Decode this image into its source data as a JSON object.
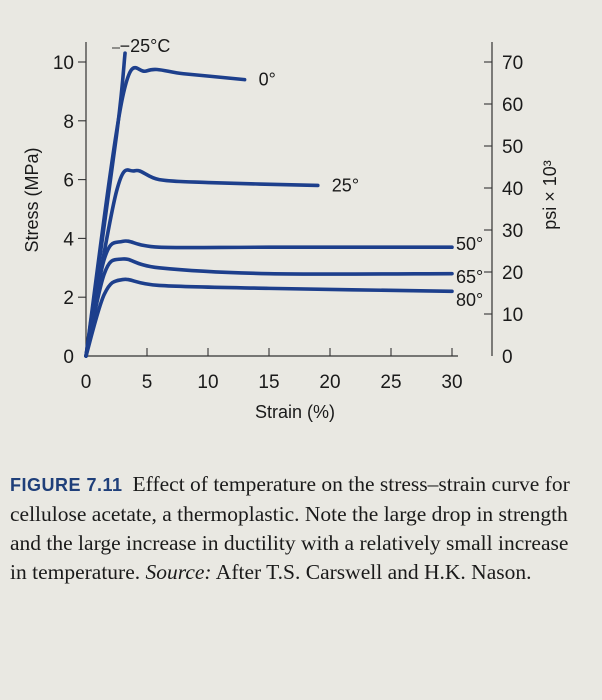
{
  "chart_data": {
    "type": "line",
    "title": "",
    "xlabel": "Strain (%)",
    "ylabel": "Stress (MPa)",
    "y2label": "psi × 10³",
    "xlim": [
      0,
      30
    ],
    "ylim": [
      0,
      10
    ],
    "x_ticks": [
      "0",
      "5",
      "10",
      "15",
      "20",
      "25",
      "30"
    ],
    "y_ticks": [
      "0",
      "2",
      "4",
      "6",
      "8",
      "10"
    ],
    "y2_ticks": [
      "0",
      "10",
      "20",
      "30",
      "40",
      "50",
      "60",
      "70"
    ],
    "y2_scale_psi_e3_per_mpa": 7.0,
    "line_color": "#1d3f8c",
    "series": [
      {
        "name": "−25°C",
        "x": [
          0,
          2.5,
          3.2
        ],
        "y": [
          0,
          7.5,
          10.3
        ]
      },
      {
        "name": "0°",
        "x": [
          0,
          3.0,
          5.0,
          8.0,
          13.0
        ],
        "y": [
          0,
          8.8,
          9.7,
          9.6,
          9.4
        ]
      },
      {
        "name": "25°",
        "x": [
          0,
          2.5,
          4.0,
          6.0,
          10.0,
          19.0
        ],
        "y": [
          0,
          5.6,
          6.3,
          6.0,
          5.9,
          5.8
        ]
      },
      {
        "name": "50°",
        "x": [
          0,
          1.5,
          3.0,
          6.0,
          15.0,
          30.0
        ],
        "y": [
          0,
          3.3,
          3.9,
          3.7,
          3.7,
          3.7
        ]
      },
      {
        "name": "65°",
        "x": [
          0,
          1.5,
          3.0,
          6.0,
          15.0,
          30.0
        ],
        "y": [
          0,
          2.8,
          3.3,
          3.0,
          2.8,
          2.8
        ]
      },
      {
        "name": "80°",
        "x": [
          0,
          1.5,
          3.0,
          6.0,
          15.0,
          30.0
        ],
        "y": [
          0,
          2.1,
          2.6,
          2.4,
          2.3,
          2.2
        ]
      }
    ]
  },
  "caption": {
    "figure_label": "FIGURE 7.11",
    "text": "Effect of temperature on the stress–strain curve for cellulose acetate, a thermoplastic. Note the large drop in strength and the large increase in ductility with a relatively small increase in temperature.",
    "source_label": "Source:",
    "source_text": "After T.S. Carswell and H.K. Nason."
  }
}
